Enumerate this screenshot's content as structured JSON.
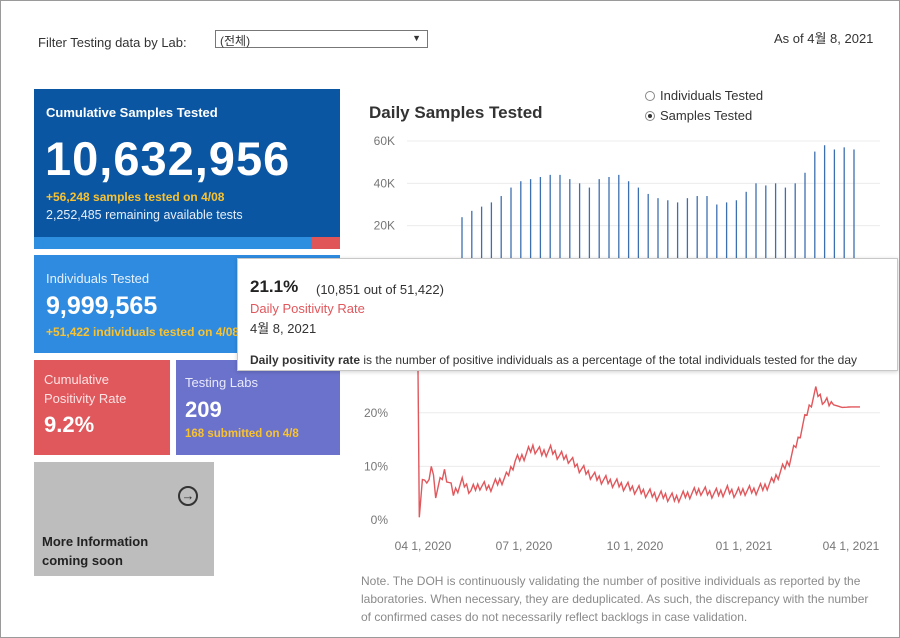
{
  "filter": {
    "label": "Filter Testing data by Lab:",
    "selected": "(전체)"
  },
  "as_of": "As of 4월 8, 2021",
  "cumulative_samples": {
    "title": "Cumulative Samples Tested",
    "value": "10,632,956",
    "daily_note": "+56,248 samples tested on 4/08",
    "remaining_note": "2,252,485 remaining available tests",
    "used_fraction": 0.91
  },
  "individuals": {
    "title": "Individuals Tested",
    "value": "9,999,565",
    "daily_note": "+51,422  individuals  tested on 4/08"
  },
  "positivity": {
    "title_line1": "Cumulative",
    "title_line2": "Positivity Rate",
    "value": "9.2%"
  },
  "labs": {
    "title": "Testing Labs",
    "value": "209",
    "note": "168 submitted on 4/8"
  },
  "more_info": {
    "line1": "More Information",
    "line2": "coming soon"
  },
  "chart": {
    "title": "Daily Samples Tested",
    "radio_individuals": "Individuals Tested",
    "radio_samples": "Samples Tested"
  },
  "tooltip": {
    "pct": "21.1%",
    "detail": "(10,851 out of  51,422)",
    "label": "Daily Positivity Rate",
    "date": "4월 8, 2021",
    "desc_bold": "Daily positivity rate",
    "desc_rest": " is the number of positive individuals as a percentage of the total individuals tested for the day"
  },
  "note": "Note. The DOH is continuously validating the number of positive individuals as reported by the laboratories. When necessary, they are deduplicated. As such, the discrepancy with the number of confirmed cases do not necessarily reflect backlogs in case validation.",
  "colors": {
    "samples_bar": "#3c6fb0",
    "positivity_line": "#e0575c",
    "navy": "#0a56a3",
    "blue": "#2f8be0",
    "red": "#e0575c",
    "purple": "#6b72cc",
    "gold": "#f8c231"
  },
  "chart_data": [
    {
      "type": "bar",
      "title": "Daily Samples Tested",
      "ylabel": "",
      "y_ticks": [
        "60K",
        "40K",
        "20K"
      ],
      "ylim": [
        0,
        60000
      ],
      "series": [
        {
          "name": "Samples Tested",
          "values": [
            24000,
            27000,
            29000,
            31000,
            34000,
            38000,
            41000,
            42000,
            43000,
            44000,
            44000,
            42000,
            40000,
            38000,
            42000,
            43000,
            44000,
            41000,
            38000,
            35000,
            33000,
            32000,
            31000,
            33000,
            34000,
            34000,
            30000,
            31000,
            32000,
            36000,
            40000,
            39000,
            40000,
            38000,
            40000,
            45000,
            55000,
            58000,
            56000,
            57000,
            56000
          ]
        }
      ]
    },
    {
      "type": "line",
      "title": "Daily Positivity Rate",
      "x_ticks": [
        "04 1, 2020",
        "07 1, 2020",
        "10 1, 2020",
        "01 1, 2021",
        "04 1, 2021"
      ],
      "y_ticks": [
        "0%",
        "10%",
        "20%"
      ],
      "ylim": [
        0,
        25
      ],
      "series": [
        {
          "name": "Daily Positivity Rate",
          "x": [
            0,
            0.3,
            1,
            2,
            3,
            4,
            6,
            8,
            10,
            12,
            14,
            16,
            18,
            20,
            22,
            24,
            26,
            28,
            30,
            32,
            34,
            36,
            38,
            40,
            42,
            44,
            46,
            48,
            50,
            52,
            54,
            56,
            58,
            60,
            62,
            64,
            66,
            68,
            70,
            72,
            74,
            76,
            78,
            80,
            82,
            84,
            86,
            88,
            90,
            92,
            94,
            96,
            98,
            100
          ],
          "values": [
            28,
            0.5,
            8,
            6,
            10,
            5,
            9,
            5,
            7,
            5.5,
            6.5,
            6,
            7,
            8,
            11,
            12,
            13.5,
            12.5,
            13,
            12,
            11.5,
            10,
            9,
            8,
            7.5,
            7,
            6.5,
            6,
            5.5,
            5,
            4.5,
            4.5,
            4,
            4.5,
            5,
            5.5,
            5,
            5,
            5.5,
            5,
            5.5,
            5.5,
            6,
            7,
            9,
            11,
            15,
            20,
            24,
            22,
            21.5,
            21,
            21.1,
            21.1
          ]
        }
      ]
    }
  ]
}
